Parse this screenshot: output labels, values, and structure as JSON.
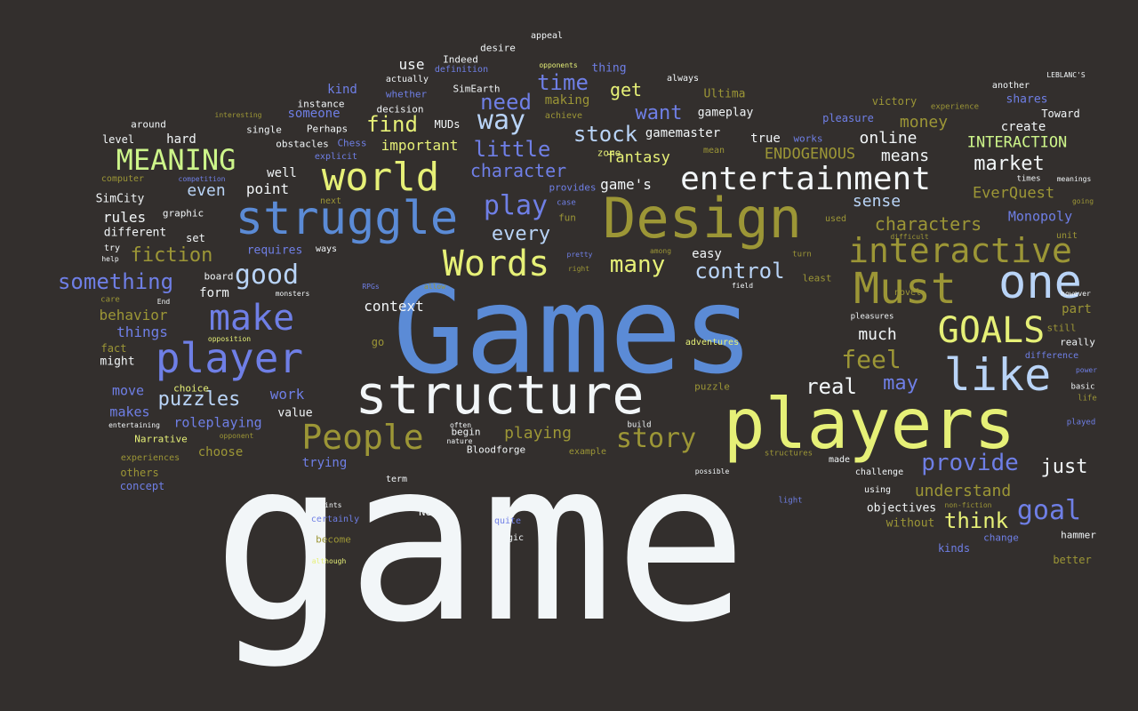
{
  "palette": {
    "background": "#332f2d",
    "white": "#f2f6f8",
    "blue": "#5b8bd6",
    "lightblue": "#b9d4f7",
    "yellow": "#e6f077",
    "olive": "#9c9636",
    "green": "#cdf58a",
    "violet": "#6f7fe6",
    "dimviolet": "#5f6fd0"
  },
  "words": [
    {
      "text": "game",
      "color": "white"
    },
    {
      "text": "Games",
      "color": "blue"
    },
    {
      "text": "players",
      "color": "yellow"
    },
    {
      "text": "structure",
      "color": "white"
    },
    {
      "text": "Design",
      "color": "olive"
    },
    {
      "text": "struggle",
      "color": "blue"
    },
    {
      "text": "entertainment",
      "color": "white"
    },
    {
      "text": "interactive",
      "color": "olive"
    },
    {
      "text": "world",
      "color": "yellow"
    },
    {
      "text": "player",
      "color": "violet"
    },
    {
      "text": "Must",
      "color": "olive"
    },
    {
      "text": "one",
      "color": "lightblue"
    },
    {
      "text": "like",
      "color": "lightblue"
    },
    {
      "text": "make",
      "color": "violet"
    },
    {
      "text": "People",
      "color": "olive"
    },
    {
      "text": "Words",
      "color": "yellow"
    },
    {
      "text": "GOALS",
      "color": "yellow"
    },
    {
      "text": "MEANING",
      "color": "green"
    },
    {
      "text": "play",
      "color": "violet"
    },
    {
      "text": "good",
      "color": "lightblue"
    },
    {
      "text": "provide",
      "color": "violet"
    },
    {
      "text": "goal",
      "color": "violet"
    },
    {
      "text": "story",
      "color": "olive"
    },
    {
      "text": "feel",
      "color": "olive"
    },
    {
      "text": "something",
      "color": "violet"
    },
    {
      "text": "many",
      "color": "yellow"
    },
    {
      "text": "control",
      "color": "lightblue"
    },
    {
      "text": "way",
      "color": "lightblue"
    },
    {
      "text": "stock",
      "color": "lightblue"
    },
    {
      "text": "market",
      "color": "white"
    },
    {
      "text": "think",
      "color": "yellow"
    },
    {
      "text": "real",
      "color": "white"
    },
    {
      "text": "may",
      "color": "violet"
    },
    {
      "text": "just",
      "color": "white"
    },
    {
      "text": "little",
      "color": "violet"
    },
    {
      "text": "character",
      "color": "violet"
    },
    {
      "text": "characters",
      "color": "olive"
    },
    {
      "text": "puzzles",
      "color": "lightblue"
    },
    {
      "text": "fiction",
      "color": "olive"
    },
    {
      "text": "every",
      "color": "lightblue"
    },
    {
      "text": "find",
      "color": "yellow"
    },
    {
      "text": "need",
      "color": "violet"
    },
    {
      "text": "time",
      "color": "violet"
    },
    {
      "text": "want",
      "color": "violet"
    },
    {
      "text": "get",
      "color": "yellow"
    },
    {
      "text": "much",
      "color": "white"
    },
    {
      "text": "sense",
      "color": "lightblue"
    },
    {
      "text": "means",
      "color": "white"
    },
    {
      "text": "online",
      "color": "white"
    },
    {
      "text": "money",
      "color": "olive"
    },
    {
      "text": "playing",
      "color": "olive"
    },
    {
      "text": "understand",
      "color": "olive"
    },
    {
      "text": "ENDOGENOUS",
      "color": "olive"
    },
    {
      "text": "INTERACTION",
      "color": "green"
    },
    {
      "text": "EverQuest",
      "color": "olive"
    },
    {
      "text": "Monopoly",
      "color": "violet"
    },
    {
      "text": "fantasy",
      "color": "yellow"
    },
    {
      "text": "important",
      "color": "yellow"
    },
    {
      "text": "even",
      "color": "lightblue"
    },
    {
      "text": "point",
      "color": "white"
    },
    {
      "text": "rules",
      "color": "white"
    },
    {
      "text": "behavior",
      "color": "olive"
    },
    {
      "text": "things",
      "color": "violet"
    },
    {
      "text": "move",
      "color": "violet"
    },
    {
      "text": "makes",
      "color": "violet"
    },
    {
      "text": "work",
      "color": "violet"
    },
    {
      "text": "roleplaying",
      "color": "violet"
    },
    {
      "text": "context",
      "color": "white"
    },
    {
      "text": "form",
      "color": "white"
    },
    {
      "text": "easy",
      "color": "white"
    },
    {
      "text": "part",
      "color": "olive"
    },
    {
      "text": "create",
      "color": "white"
    },
    {
      "text": "gameplay",
      "color": "white"
    },
    {
      "text": "gamemaster",
      "color": "white"
    },
    {
      "text": "true",
      "color": "white"
    },
    {
      "text": "hard",
      "color": "white"
    },
    {
      "text": "well",
      "color": "white"
    },
    {
      "text": "different",
      "color": "white"
    },
    {
      "text": "SimCity",
      "color": "white"
    },
    {
      "text": "trying",
      "color": "violet"
    },
    {
      "text": "choose",
      "color": "olive"
    },
    {
      "text": "objectives",
      "color": "white"
    },
    {
      "text": "without",
      "color": "olive"
    },
    {
      "text": "use",
      "color": "white"
    },
    {
      "text": "kind",
      "color": "violet"
    },
    {
      "text": "someone",
      "color": "violet"
    },
    {
      "text": "making",
      "color": "olive"
    },
    {
      "text": "Ultima",
      "color": "olive"
    },
    {
      "text": "shares",
      "color": "violet"
    },
    {
      "text": "Toward",
      "color": "white"
    },
    {
      "text": "pleasure",
      "color": "violet"
    },
    {
      "text": "victory",
      "color": "olive"
    },
    {
      "text": "requires",
      "color": "violet"
    },
    {
      "text": "set",
      "color": "white"
    },
    {
      "text": "value",
      "color": "white"
    },
    {
      "text": "might",
      "color": "white"
    },
    {
      "text": "fact",
      "color": "olive"
    },
    {
      "text": "level",
      "color": "white"
    },
    {
      "text": "around",
      "color": "white"
    },
    {
      "text": "MUDs",
      "color": "white"
    },
    {
      "text": "Chess",
      "color": "violet"
    },
    {
      "text": "zone",
      "color": "yellow"
    },
    {
      "text": "instance",
      "color": "white"
    },
    {
      "text": "Perhaps",
      "color": "white"
    },
    {
      "text": "single",
      "color": "white"
    },
    {
      "text": "obstacles",
      "color": "white"
    },
    {
      "text": "decision",
      "color": "white"
    },
    {
      "text": "whether",
      "color": "violet"
    },
    {
      "text": "SimEarth",
      "color": "white"
    },
    {
      "text": "thing",
      "color": "violet"
    },
    {
      "text": "desire",
      "color": "white"
    },
    {
      "text": "appeal",
      "color": "white"
    },
    {
      "text": "Indeed",
      "color": "white"
    },
    {
      "text": "actually",
      "color": "white"
    },
    {
      "text": "definition",
      "color": "violet"
    },
    {
      "text": "opponents",
      "color": "yellow"
    },
    {
      "text": "always",
      "color": "white"
    },
    {
      "text": "achieve",
      "color": "olive"
    },
    {
      "text": "works",
      "color": "violet"
    },
    {
      "text": "mean",
      "color": "olive"
    },
    {
      "text": "another",
      "color": "white"
    },
    {
      "text": "LEBLANC'S",
      "color": "white"
    },
    {
      "text": "experience",
      "color": "olive"
    },
    {
      "text": "interesting",
      "color": "olive"
    },
    {
      "text": "explicit",
      "color": "violet"
    },
    {
      "text": "computer",
      "color": "olive"
    },
    {
      "text": "competition",
      "color": "violet"
    },
    {
      "text": "next",
      "color": "olive"
    },
    {
      "text": "graphic",
      "color": "white"
    },
    {
      "text": "try",
      "color": "white"
    },
    {
      "text": "help",
      "color": "white"
    },
    {
      "text": "provides",
      "color": "violet"
    },
    {
      "text": "case",
      "color": "violet"
    },
    {
      "text": "fun",
      "color": "olive"
    },
    {
      "text": "used",
      "color": "olive"
    },
    {
      "text": "going",
      "color": "olive"
    },
    {
      "text": "times",
      "color": "white"
    },
    {
      "text": "meanings",
      "color": "white"
    },
    {
      "text": "difficult",
      "color": "olive"
    },
    {
      "text": "unit",
      "color": "olive"
    },
    {
      "text": "ways",
      "color": "white"
    },
    {
      "text": "board",
      "color": "white"
    },
    {
      "text": "monsters",
      "color": "white"
    },
    {
      "text": "care",
      "color": "olive"
    },
    {
      "text": "End",
      "color": "white"
    },
    {
      "text": "RPGs",
      "color": "violet"
    },
    {
      "text": "allow",
      "color": "olive"
    },
    {
      "text": "pretty",
      "color": "violet"
    },
    {
      "text": "right",
      "color": "olive"
    },
    {
      "text": "among",
      "color": "olive"
    },
    {
      "text": "turn",
      "color": "olive"
    },
    {
      "text": "field",
      "color": "white"
    },
    {
      "text": "least",
      "color": "olive"
    },
    {
      "text": "novel",
      "color": "olive"
    },
    {
      "text": "however",
      "color": "white"
    },
    {
      "text": "pleasures",
      "color": "white"
    },
    {
      "text": "still",
      "color": "olive"
    },
    {
      "text": "really",
      "color": "white"
    },
    {
      "text": "difference",
      "color": "violet"
    },
    {
      "text": "power",
      "color": "violet"
    },
    {
      "text": "basic",
      "color": "white"
    },
    {
      "text": "life",
      "color": "olive"
    },
    {
      "text": "played",
      "color": "violet"
    },
    {
      "text": "go",
      "color": "olive"
    },
    {
      "text": "opposition",
      "color": "yellow"
    },
    {
      "text": "adventures",
      "color": "yellow"
    },
    {
      "text": "puzzle",
      "color": "olive"
    },
    {
      "text": "choice",
      "color": "yellow"
    },
    {
      "text": "often",
      "color": "white"
    },
    {
      "text": "entertaining",
      "color": "white"
    },
    {
      "text": "Narrative",
      "color": "yellow"
    },
    {
      "text": "opponent",
      "color": "olive"
    },
    {
      "text": "begin",
      "color": "white"
    },
    {
      "text": "nature",
      "color": "white"
    },
    {
      "text": "Bloodforge",
      "color": "white"
    },
    {
      "text": "build",
      "color": "white"
    },
    {
      "text": "example",
      "color": "olive"
    },
    {
      "text": "experiences",
      "color": "olive"
    },
    {
      "text": "others",
      "color": "olive"
    },
    {
      "text": "concept",
      "color": "violet"
    },
    {
      "text": "term",
      "color": "white"
    },
    {
      "text": "points",
      "color": "white"
    },
    {
      "text": "certainly",
      "color": "violet"
    },
    {
      "text": "become",
      "color": "olive"
    },
    {
      "text": "although",
      "color": "yellow"
    },
    {
      "text": "New",
      "color": "white"
    },
    {
      "text": "quite",
      "color": "violet"
    },
    {
      "text": "magic",
      "color": "white"
    },
    {
      "text": "possible",
      "color": "white"
    },
    {
      "text": "structures",
      "color": "olive"
    },
    {
      "text": "made",
      "color": "white"
    },
    {
      "text": "challenge",
      "color": "white"
    },
    {
      "text": "using",
      "color": "white"
    },
    {
      "text": "non-fiction",
      "color": "olive"
    },
    {
      "text": "light",
      "color": "violet"
    },
    {
      "text": "change",
      "color": "violet"
    },
    {
      "text": "hammer",
      "color": "white"
    },
    {
      "text": "kinds",
      "color": "violet"
    },
    {
      "text": "better",
      "color": "olive"
    },
    {
      "text": "game's",
      "color": "white"
    }
  ]
}
